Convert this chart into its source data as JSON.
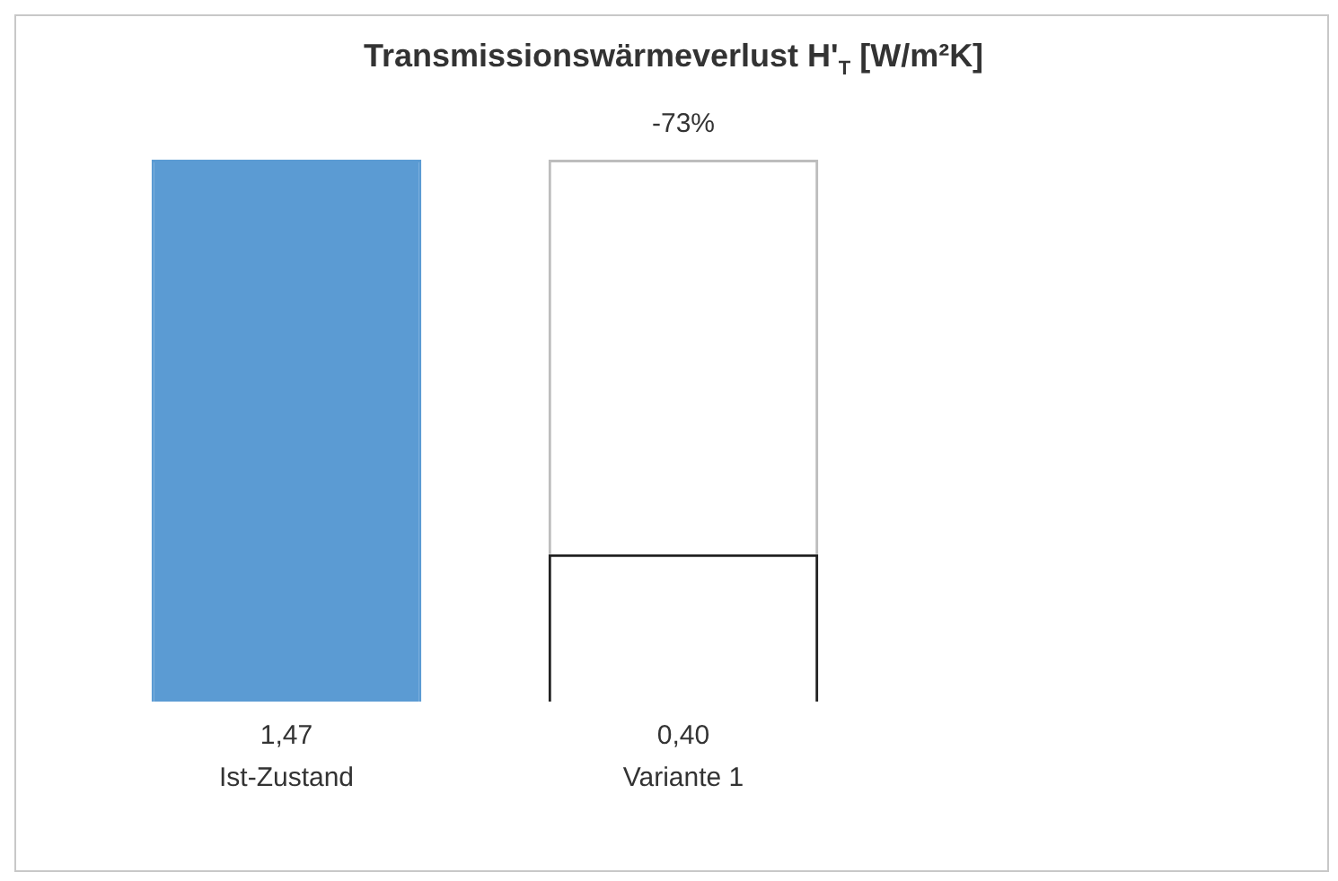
{
  "chart_data": {
    "type": "bar",
    "title": "Transmissionswärmeverlust H'$_{T}$  [W/m²K]",
    "categories": [
      "Ist-Zustand",
      "Variante 1"
    ],
    "series": [
      {
        "colors": [
          "#5b9bd3",
          "#222222"
        ],
        "values": [
          1.47,
          0.4
        ],
        "value_labels": [
          "1,47",
          "0,40"
        ]
      },
      {
        "color": "#bdbdbd",
        "values": [
          null,
          1.07
        ]
      }
    ],
    "annotations": [
      {
        "text": "-73%",
        "x": "Variante 1",
        "y": 1.47
      }
    ],
    "stacked": true,
    "grid": false,
    "legend": false
  }
}
